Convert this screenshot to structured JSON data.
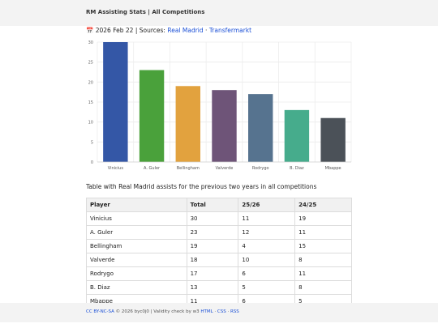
{
  "header": {
    "title": "RM Assisting Stats | All Competitions"
  },
  "meta": {
    "calendar_icon": "calendar-icon",
    "date": "2026 Feb 22",
    "sources_label": "Sources:",
    "source_links": [
      "Real Madrid",
      "Transfermarkt"
    ],
    "separator": "·"
  },
  "chart_data": {
    "type": "bar",
    "categories": [
      "Vinicius",
      "A. Guler",
      "Bellingham",
      "Valverde",
      "Rodrygo",
      "B. Diaz",
      "Mbappe"
    ],
    "values": [
      30,
      23,
      19,
      18,
      17,
      13,
      11
    ],
    "colors": [
      "#3457a6",
      "#4aa13b",
      "#e2a23e",
      "#6e5478",
      "#56738f",
      "#46ac8c",
      "#4b5158"
    ],
    "yticks": [
      0,
      5,
      10,
      15,
      20,
      25,
      30
    ],
    "ylim": [
      0,
      30
    ],
    "grid": true
  },
  "caption": "Table with Real Madrid assists for the previous two years in all competitions",
  "table": {
    "headers": [
      "Player",
      "Total",
      "25/26",
      "24/25"
    ],
    "rows": [
      [
        "Vinicius",
        "30",
        "11",
        "19"
      ],
      [
        "A. Guler",
        "23",
        "12",
        "11"
      ],
      [
        "Bellingham",
        "19",
        "4",
        "15"
      ],
      [
        "Valverde",
        "18",
        "10",
        "8"
      ],
      [
        "Rodrygo",
        "17",
        "6",
        "11"
      ],
      [
        "B. Diaz",
        "13",
        "5",
        "8"
      ],
      [
        "Mbappe",
        "11",
        "6",
        "5"
      ]
    ]
  },
  "footer": {
    "license": "CC BY-NC-SA",
    "copyright": "© 2026 byc0j0 | Validity check by w3",
    "links": [
      "HTML",
      "CSS",
      "RSS"
    ],
    "separator": "·"
  }
}
